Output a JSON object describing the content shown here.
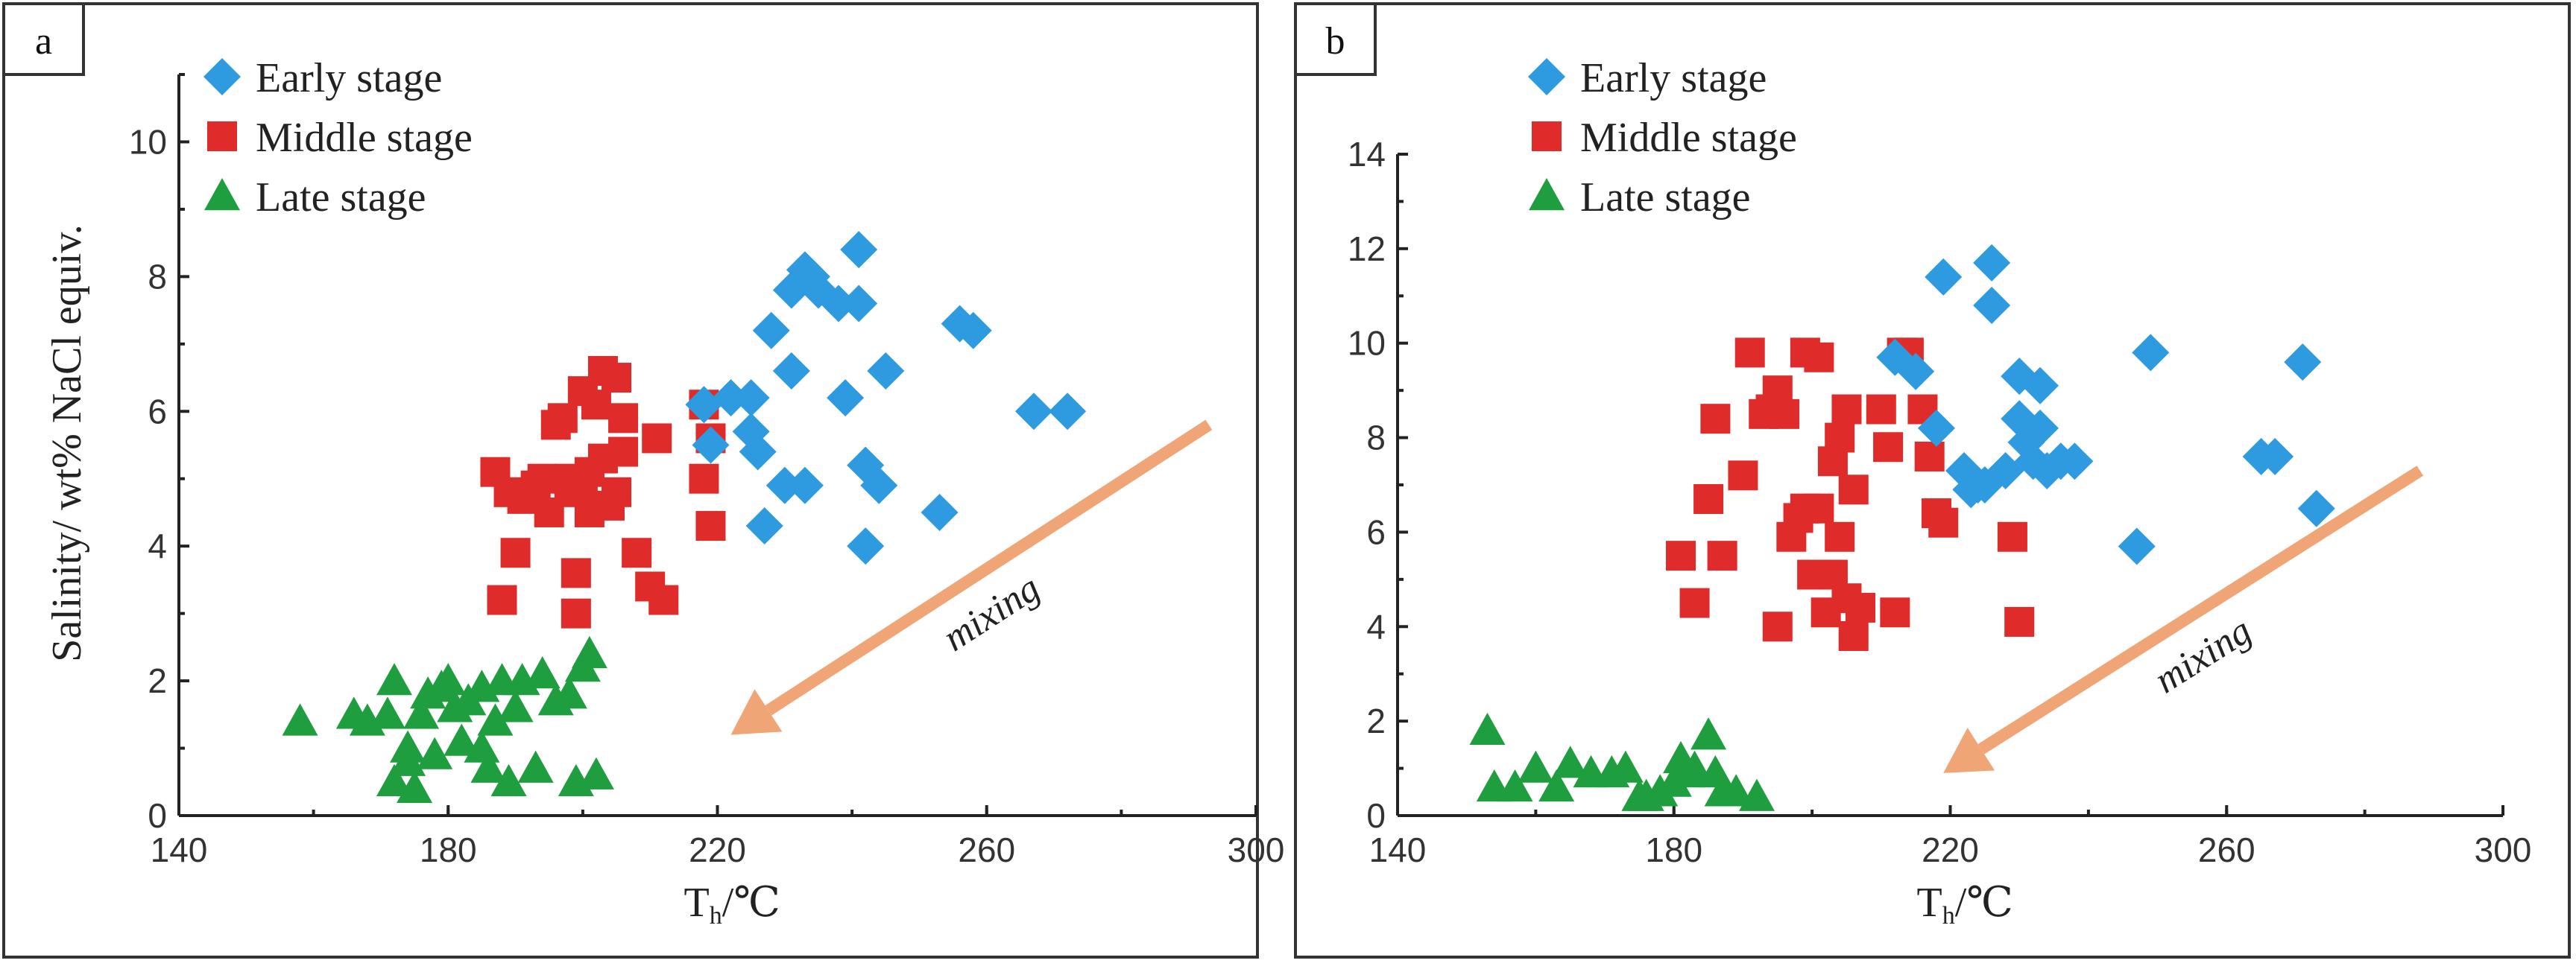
{
  "chart_data": [
    {
      "type": "scatter",
      "panel_label": "a",
      "xlabel": "T",
      "xlabel_sub": "h",
      "xlabel_unit": "/℃",
      "ylabel": "Salinity/ wt% NaCl equiv.",
      "xlim": [
        140,
        300
      ],
      "ylim": [
        0,
        11
      ],
      "xticks": [
        140,
        180,
        220,
        260,
        300
      ],
      "yticks": [
        0,
        2,
        4,
        6,
        8,
        10
      ],
      "legend_position": "top-left",
      "annotation": {
        "text": "mixing",
        "arrow_from": [
          293,
          5.8
        ],
        "arrow_to": [
          222,
          1.2
        ]
      },
      "series": [
        {
          "name": "Early stage",
          "marker": "diamond",
          "color": "#2E9BE0",
          "points": [
            [
              218,
              6.1
            ],
            [
              219,
              5.5
            ],
            [
              222,
              6.2
            ],
            [
              225,
              6.2
            ],
            [
              225,
              5.7
            ],
            [
              226,
              5.4
            ],
            [
              227,
              4.3
            ],
            [
              228,
              7.2
            ],
            [
              230,
              4.9
            ],
            [
              231,
              6.6
            ],
            [
              231,
              7.8
            ],
            [
              233,
              8.1
            ],
            [
              233,
              4.9
            ],
            [
              234,
              8.0
            ],
            [
              235,
              7.8
            ],
            [
              238,
              7.6
            ],
            [
              239,
              6.2
            ],
            [
              241,
              8.4
            ],
            [
              241,
              7.6
            ],
            [
              242,
              5.2
            ],
            [
              242,
              4.0
            ],
            [
              244,
              4.9
            ],
            [
              245,
              6.6
            ],
            [
              253,
              4.5
            ],
            [
              256,
              7.3
            ],
            [
              258,
              7.2
            ],
            [
              267,
              6.0
            ],
            [
              272,
              6.0
            ]
          ]
        },
        {
          "name": "Middle stage",
          "marker": "square",
          "color": "#E02B2B",
          "points": [
            [
              187,
              5.1
            ],
            [
              188,
              3.2
            ],
            [
              189,
              4.8
            ],
            [
              190,
              3.9
            ],
            [
              191,
              4.7
            ],
            [
              193,
              4.9
            ],
            [
              194,
              5.0
            ],
            [
              195,
              4.5
            ],
            [
              196,
              5.8
            ],
            [
              197,
              5.9
            ],
            [
              198,
              5.0
            ],
            [
              198,
              4.8
            ],
            [
              199,
              3.6
            ],
            [
              199,
              3.0
            ],
            [
              200,
              6.3
            ],
            [
              200,
              4.9
            ],
            [
              201,
              5.1
            ],
            [
              201,
              4.5
            ],
            [
              202,
              6.1
            ],
            [
              203,
              6.6
            ],
            [
              203,
              5.3
            ],
            [
              204,
              4.6
            ],
            [
              205,
              6.5
            ],
            [
              205,
              4.8
            ],
            [
              206,
              5.4
            ],
            [
              206,
              5.9
            ],
            [
              208,
              3.9
            ],
            [
              210,
              3.4
            ],
            [
              211,
              5.6
            ],
            [
              212,
              3.2
            ],
            [
              218,
              6.1
            ],
            [
              219,
              5.6
            ],
            [
              218,
              5.0
            ],
            [
              219,
              4.3
            ]
          ]
        },
        {
          "name": "Late stage",
          "marker": "triangle",
          "color": "#1E9E3E",
          "points": [
            [
              158,
              1.4
            ],
            [
              166,
              1.5
            ],
            [
              168,
              1.4
            ],
            [
              171,
              1.5
            ],
            [
              172,
              2.0
            ],
            [
              172,
              0.5
            ],
            [
              174,
              1.0
            ],
            [
              174,
              0.8
            ],
            [
              175,
              0.4
            ],
            [
              176,
              1.5
            ],
            [
              177,
              1.8
            ],
            [
              178,
              0.9
            ],
            [
              179,
              1.9
            ],
            [
              180,
              2.0
            ],
            [
              181,
              1.6
            ],
            [
              182,
              1.1
            ],
            [
              183,
              1.7
            ],
            [
              185,
              1.0
            ],
            [
              185,
              1.9
            ],
            [
              186,
              0.7
            ],
            [
              187,
              1.4
            ],
            [
              188,
              2.0
            ],
            [
              189,
              0.5
            ],
            [
              190,
              1.6
            ],
            [
              191,
              2.0
            ],
            [
              193,
              0.7
            ],
            [
              194,
              2.1
            ],
            [
              196,
              1.7
            ],
            [
              198,
              1.8
            ],
            [
              199,
              0.5
            ],
            [
              200,
              2.2
            ],
            [
              201,
              2.4
            ],
            [
              202,
              0.6
            ]
          ]
        }
      ]
    },
    {
      "type": "scatter",
      "panel_label": "b",
      "xlabel": "T",
      "xlabel_sub": "h",
      "xlabel_unit": "/℃",
      "ylabel": "",
      "xlim": [
        140,
        300
      ],
      "ylim": [
        0,
        14
      ],
      "xticks": [
        140,
        180,
        220,
        260,
        300
      ],
      "yticks": [
        0,
        2,
        4,
        6,
        8,
        10,
        12,
        14
      ],
      "legend_position": "top-left",
      "annotation": {
        "text": "mixing",
        "arrow_from": [
          288,
          7.3
        ],
        "arrow_to": [
          219,
          0.9
        ]
      },
      "series": [
        {
          "name": "Early stage",
          "marker": "diamond",
          "color": "#2E9BE0",
          "points": [
            [
              212,
              9.7
            ],
            [
              215,
              9.4
            ],
            [
              218,
              8.2
            ],
            [
              219,
              11.4
            ],
            [
              222,
              7.3
            ],
            [
              223,
              6.9
            ],
            [
              224,
              7.0
            ],
            [
              225,
              7.0
            ],
            [
              226,
              11.7
            ],
            [
              226,
              10.8
            ],
            [
              228,
              7.3
            ],
            [
              230,
              9.3
            ],
            [
              230,
              8.4
            ],
            [
              231,
              7.9
            ],
            [
              232,
              7.5
            ],
            [
              233,
              9.1
            ],
            [
              233,
              8.2
            ],
            [
              234,
              7.3
            ],
            [
              236,
              7.5
            ],
            [
              238,
              7.5
            ],
            [
              247,
              5.7
            ],
            [
              249,
              9.8
            ],
            [
              265,
              7.6
            ],
            [
              267,
              7.6
            ],
            [
              271,
              9.6
            ],
            [
              273,
              6.5
            ]
          ]
        },
        {
          "name": "Middle stage",
          "marker": "square",
          "color": "#E02B2B",
          "points": [
            [
              181,
              5.5
            ],
            [
              183,
              4.5
            ],
            [
              185,
              6.7
            ],
            [
              186,
              8.4
            ],
            [
              187,
              5.5
            ],
            [
              190,
              7.2
            ],
            [
              191,
              9.8
            ],
            [
              193,
              8.5
            ],
            [
              194,
              8.6
            ],
            [
              195,
              9.0
            ],
            [
              195,
              4.0
            ],
            [
              196,
              8.5
            ],
            [
              197,
              5.9
            ],
            [
              198,
              6.3
            ],
            [
              199,
              6.5
            ],
            [
              199,
              9.8
            ],
            [
              200,
              5.1
            ],
            [
              201,
              9.7
            ],
            [
              201,
              6.5
            ],
            [
              202,
              4.3
            ],
            [
              203,
              7.5
            ],
            [
              203,
              5.1
            ],
            [
              204,
              8.0
            ],
            [
              204,
              5.9
            ],
            [
              205,
              8.6
            ],
            [
              205,
              4.6
            ],
            [
              206,
              6.9
            ],
            [
              206,
              3.8
            ],
            [
              207,
              4.4
            ],
            [
              210,
              8.6
            ],
            [
              211,
              7.8
            ],
            [
              212,
              4.3
            ],
            [
              213,
              9.8
            ],
            [
              214,
              9.8
            ],
            [
              216,
              8.6
            ],
            [
              217,
              7.6
            ],
            [
              218,
              6.4
            ],
            [
              219,
              6.2
            ],
            [
              229,
              5.9
            ],
            [
              230,
              4.1
            ]
          ]
        },
        {
          "name": "Late stage",
          "marker": "triangle",
          "color": "#1E9E3E",
          "points": [
            [
              153,
              1.8
            ],
            [
              154,
              0.6
            ],
            [
              157,
              0.6
            ],
            [
              160,
              1.0
            ],
            [
              163,
              0.6
            ],
            [
              165,
              1.1
            ],
            [
              168,
              0.9
            ],
            [
              171,
              0.9
            ],
            [
              173,
              1.0
            ],
            [
              175,
              0.4
            ],
            [
              176,
              0.4
            ],
            [
              178,
              0.5
            ],
            [
              180,
              0.7
            ],
            [
              181,
              1.2
            ],
            [
              182,
              0.9
            ],
            [
              183,
              1.0
            ],
            [
              185,
              1.7
            ],
            [
              186,
              0.9
            ],
            [
              187,
              0.5
            ],
            [
              189,
              0.5
            ],
            [
              192,
              0.4
            ]
          ]
        }
      ]
    }
  ]
}
